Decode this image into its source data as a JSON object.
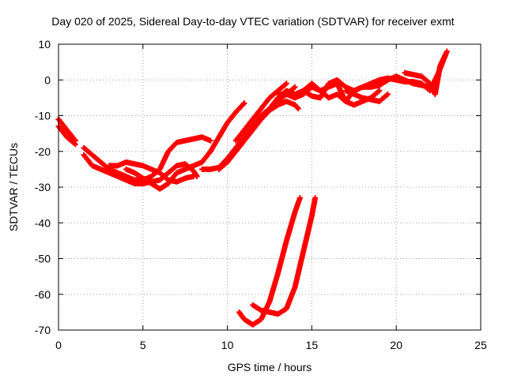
{
  "chart_data": {
    "type": "scatter",
    "title": "Day 020 of 2025, Sidereal Day-to-day VTEC variation (SDTVAR) for receiver exmt",
    "xlabel": "GPS time / hours",
    "ylabel": "SDTVAR / TECUs",
    "xlim": [
      0,
      25
    ],
    "ylim": [
      -70,
      10
    ],
    "xticks": [
      0,
      5,
      10,
      15,
      20,
      25
    ],
    "yticks": [
      -70,
      -60,
      -50,
      -40,
      -30,
      -20,
      -10,
      0,
      10
    ],
    "grid": true,
    "marker_color": "#ff0000",
    "series": [
      {
        "name": "trace-1",
        "points": [
          [
            0,
            -11
          ],
          [
            0.5,
            -14
          ],
          [
            1.0,
            -17
          ]
        ]
      },
      {
        "name": "trace-2",
        "points": [
          [
            0,
            -13
          ],
          [
            0.5,
            -16
          ],
          [
            1.0,
            -18
          ]
        ]
      },
      {
        "name": "trace-3",
        "points": [
          [
            1.5,
            -19
          ],
          [
            2.0,
            -21
          ],
          [
            2.5,
            -23
          ],
          [
            3.0,
            -25
          ],
          [
            3.5,
            -26
          ],
          [
            4.0,
            -27
          ],
          [
            4.5,
            -28
          ],
          [
            5.0,
            -28
          ],
          [
            5.5,
            -27
          ],
          [
            6.0,
            -25
          ],
          [
            6.5,
            -20
          ],
          [
            7.0,
            -17.5
          ],
          [
            7.5,
            -17
          ],
          [
            8.0,
            -16.5
          ],
          [
            8.5,
            -16
          ],
          [
            9.0,
            -17
          ]
        ]
      },
      {
        "name": "trace-4",
        "points": [
          [
            1.5,
            -21
          ],
          [
            2.0,
            -24
          ],
          [
            2.5,
            -25
          ],
          [
            3.0,
            -26
          ],
          [
            3.5,
            -27
          ],
          [
            4.0,
            -28
          ],
          [
            4.5,
            -29
          ],
          [
            5.0,
            -29
          ],
          [
            5.5,
            -28.5
          ],
          [
            6.0,
            -28
          ],
          [
            6.5,
            -26
          ],
          [
            7.0,
            -24
          ],
          [
            7.5,
            -23.5
          ],
          [
            8.0,
            -25.5
          ],
          [
            8.2,
            -27
          ]
        ]
      },
      {
        "name": "trace-5",
        "points": [
          [
            3.0,
            -24
          ],
          [
            3.5,
            -24
          ],
          [
            4.0,
            -23
          ],
          [
            4.5,
            -23.5
          ],
          [
            5.0,
            -24
          ],
          [
            5.5,
            -25
          ],
          [
            6.0,
            -26
          ],
          [
            6.5,
            -28
          ],
          [
            7.0,
            -28.5
          ],
          [
            7.5,
            -27.5
          ],
          [
            8.0,
            -27
          ]
        ]
      },
      {
        "name": "trace-6",
        "points": [
          [
            4.0,
            -25
          ],
          [
            4.5,
            -26
          ],
          [
            5.0,
            -27.5
          ],
          [
            5.5,
            -29
          ],
          [
            6.0,
            -30.5
          ],
          [
            6.5,
            -29
          ],
          [
            7.0,
            -26
          ],
          [
            7.5,
            -25
          ],
          [
            8.0,
            -24
          ],
          [
            8.5,
            -23
          ],
          [
            9.0,
            -20
          ],
          [
            9.5,
            -16
          ],
          [
            10.0,
            -12
          ],
          [
            10.5,
            -9
          ],
          [
            11.0,
            -6.5
          ]
        ]
      },
      {
        "name": "trace-7",
        "points": [
          [
            8.5,
            -25
          ],
          [
            9.0,
            -25
          ],
          [
            9.5,
            -24.5
          ],
          [
            10.0,
            -22
          ],
          [
            10.5,
            -19
          ],
          [
            11.0,
            -16
          ],
          [
            11.5,
            -13
          ],
          [
            12.0,
            -10
          ],
          [
            12.5,
            -8
          ],
          [
            13.0,
            -6
          ],
          [
            13.5,
            -4
          ],
          [
            14.0,
            -2
          ]
        ]
      },
      {
        "name": "trace-8",
        "points": [
          [
            9.5,
            -25
          ],
          [
            10.0,
            -23
          ],
          [
            10.5,
            -20
          ],
          [
            11.0,
            -17
          ],
          [
            11.5,
            -14
          ],
          [
            12.0,
            -11
          ],
          [
            12.5,
            -8.5
          ],
          [
            13.0,
            -7
          ],
          [
            13.5,
            -6
          ],
          [
            14.0,
            -7
          ],
          [
            14.2,
            -8
          ]
        ]
      },
      {
        "name": "trace-9",
        "points": [
          [
            10.5,
            -17
          ],
          [
            11.0,
            -14
          ],
          [
            11.5,
            -11
          ],
          [
            12.0,
            -8
          ],
          [
            12.5,
            -5
          ],
          [
            13.0,
            -3
          ],
          [
            13.5,
            -1
          ]
        ]
      },
      {
        "name": "trace-10",
        "points": [
          [
            12.5,
            -8
          ],
          [
            13.0,
            -5
          ],
          [
            13.5,
            -3
          ],
          [
            14.0,
            -4
          ],
          [
            14.5,
            -3
          ],
          [
            15.0,
            -1
          ],
          [
            15.5,
            -3
          ],
          [
            16.0,
            -5
          ],
          [
            16.5,
            -4
          ],
          [
            17.0,
            -6
          ],
          [
            17.5,
            -3
          ],
          [
            18.0,
            -2
          ],
          [
            18.5,
            -2
          ],
          [
            19.0,
            -1.5
          ],
          [
            19.5,
            0
          ],
          [
            20.0,
            1
          ],
          [
            20.5,
            0
          ],
          [
            21.0,
            -1
          ],
          [
            21.5,
            -1.5
          ],
          [
            22.0,
            -2
          ]
        ]
      },
      {
        "name": "trace-11",
        "points": [
          [
            13.0,
            -4
          ],
          [
            13.5,
            -4
          ],
          [
            14.0,
            -5
          ],
          [
            14.5,
            -4
          ],
          [
            15.0,
            -2
          ],
          [
            15.5,
            -3
          ],
          [
            16.0,
            -2
          ],
          [
            16.5,
            -1
          ],
          [
            17.0,
            -6
          ],
          [
            17.5,
            -7
          ],
          [
            18.0,
            -6
          ],
          [
            18.5,
            -5
          ],
          [
            19.0,
            -3
          ]
        ]
      },
      {
        "name": "trace-12",
        "points": [
          [
            14.5,
            -3
          ],
          [
            15.0,
            -4.5
          ],
          [
            15.5,
            -5
          ],
          [
            16.0,
            -1
          ],
          [
            16.5,
            0
          ],
          [
            17.0,
            -2
          ],
          [
            17.5,
            -3
          ],
          [
            18.0,
            -2
          ],
          [
            18.5,
            -1
          ],
          [
            19.0,
            0
          ],
          [
            19.5,
            0.5
          ],
          [
            20.0,
            0
          ],
          [
            20.5,
            -0.5
          ],
          [
            21.0,
            -0.5
          ],
          [
            21.5,
            -1
          ],
          [
            22.0,
            -3
          ],
          [
            22.5,
            2
          ],
          [
            23.0,
            8
          ]
        ]
      },
      {
        "name": "trace-13",
        "points": [
          [
            17.0,
            -3
          ],
          [
            17.5,
            -4
          ],
          [
            18.0,
            -5
          ],
          [
            18.5,
            -5.5
          ],
          [
            19.0,
            -6
          ],
          [
            19.5,
            -4
          ]
        ]
      },
      {
        "name": "trace-14",
        "points": [
          [
            20.5,
            2
          ],
          [
            21.0,
            1.5
          ],
          [
            21.5,
            1
          ],
          [
            22.0,
            -1
          ],
          [
            22.3,
            -4
          ],
          [
            22.6,
            4
          ],
          [
            22.9,
            7
          ]
        ]
      },
      {
        "name": "trace-15",
        "points": [
          [
            10.7,
            -65
          ],
          [
            11.0,
            -67
          ],
          [
            11.5,
            -68.5
          ],
          [
            12.0,
            -67
          ],
          [
            12.5,
            -62
          ],
          [
            13.0,
            -54
          ],
          [
            13.5,
            -45
          ],
          [
            14.0,
            -37
          ],
          [
            14.3,
            -33
          ]
        ]
      },
      {
        "name": "trace-16",
        "points": [
          [
            11.5,
            -63
          ],
          [
            12.0,
            -64.5
          ],
          [
            12.5,
            -65
          ],
          [
            13.0,
            -65.5
          ],
          [
            13.5,
            -64
          ],
          [
            14.0,
            -58
          ],
          [
            14.5,
            -48
          ],
          [
            15.0,
            -38
          ],
          [
            15.2,
            -33
          ]
        ]
      }
    ]
  }
}
